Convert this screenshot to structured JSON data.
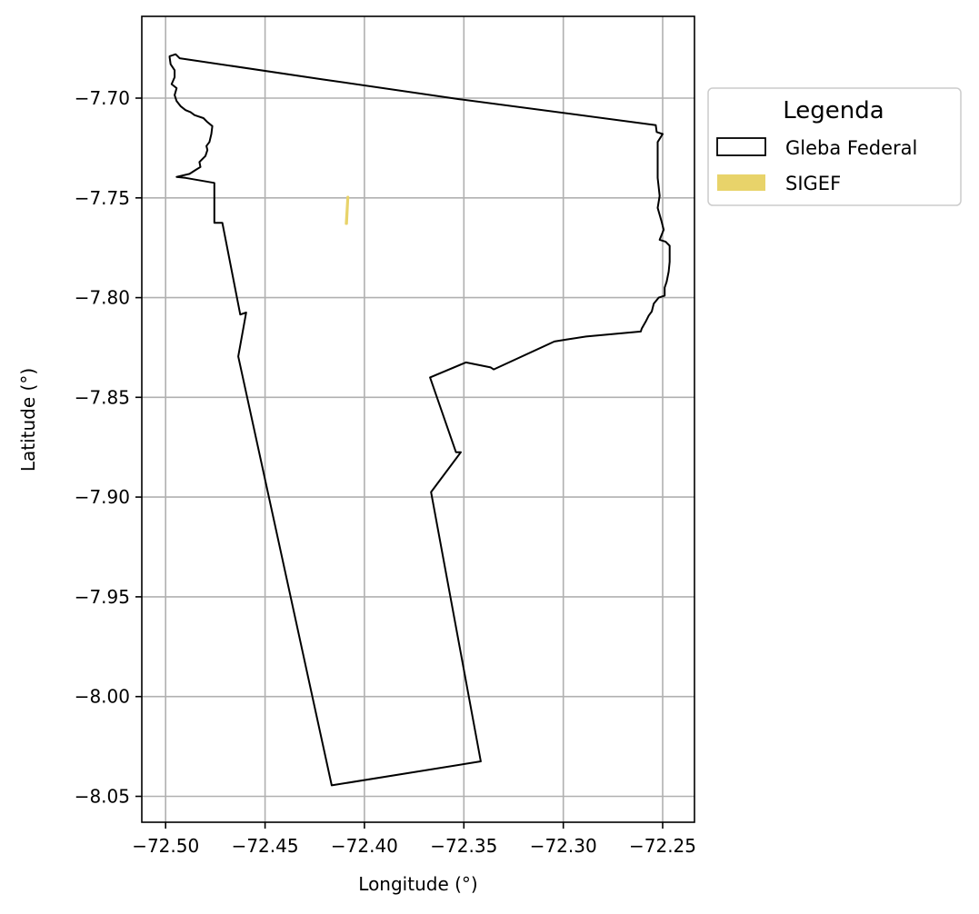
{
  "chart_data": {
    "type": "map",
    "xlabel": "Longitude (°)",
    "ylabel": "Latitude (°)",
    "xlim": [
      -72.512,
      -72.234
    ],
    "ylim": [
      -8.063,
      -7.659
    ],
    "x_ticks": [
      -72.5,
      -72.45,
      -72.4,
      -72.35,
      -72.3,
      -72.25
    ],
    "x_tick_labels": [
      "−72.50",
      "−72.45",
      "−72.40",
      "−72.35",
      "−72.30",
      "−72.25"
    ],
    "y_ticks": [
      -7.7,
      -7.75,
      -7.8,
      -7.85,
      -7.9,
      -7.95,
      -8.0,
      -8.05
    ],
    "y_tick_labels": [
      "−7.70",
      "−7.75",
      "−7.80",
      "−7.85",
      "−7.90",
      "−7.95",
      "−8.00",
      "−8.05"
    ],
    "grid": true,
    "legend": {
      "title": "Legenda",
      "placement": "outside upper right",
      "entries": [
        {
          "label": "Gleba Federal",
          "style": "outline",
          "color": "#000000"
        },
        {
          "label": "SIGEF",
          "style": "filled",
          "color": "#e8d36a"
        }
      ]
    },
    "series": [
      {
        "name": "Gleba Federal",
        "geometry": "polygon",
        "color": "#000000",
        "coordinates": [
          [
            -72.498,
            -7.679
          ],
          [
            -72.495,
            -7.678
          ],
          [
            -72.493,
            -7.68
          ],
          [
            -72.4215,
            -7.6905
          ],
          [
            -72.3525,
            -7.7005
          ],
          [
            -72.2535,
            -7.7135
          ],
          [
            -72.253,
            -7.717
          ],
          [
            -72.25,
            -7.718
          ],
          [
            -72.2525,
            -7.722
          ],
          [
            -72.2525,
            -7.731
          ],
          [
            -72.2525,
            -7.74
          ],
          [
            -72.2515,
            -7.749
          ],
          [
            -72.2525,
            -7.755
          ],
          [
            -72.2505,
            -7.762
          ],
          [
            -72.2495,
            -7.766
          ],
          [
            -72.2515,
            -7.771
          ],
          [
            -72.2485,
            -7.772
          ],
          [
            -72.2465,
            -7.774
          ],
          [
            -72.2465,
            -7.782
          ],
          [
            -72.247,
            -7.787
          ],
          [
            -72.248,
            -7.792
          ],
          [
            -72.249,
            -7.795
          ],
          [
            -72.249,
            -7.799
          ],
          [
            -72.252,
            -7.8
          ],
          [
            -72.2545,
            -7.803
          ],
          [
            -72.2555,
            -7.807
          ],
          [
            -72.257,
            -7.809
          ],
          [
            -72.2585,
            -7.812
          ],
          [
            -72.2605,
            -7.8155
          ],
          [
            -72.261,
            -7.817
          ],
          [
            -72.2885,
            -7.8195
          ],
          [
            -72.2985,
            -7.821
          ],
          [
            -72.3045,
            -7.822
          ],
          [
            -72.335,
            -7.836
          ],
          [
            -72.3365,
            -7.835
          ],
          [
            -72.349,
            -7.8325
          ],
          [
            -72.367,
            -7.84
          ],
          [
            -72.354,
            -7.8775
          ],
          [
            -72.3515,
            -7.8775
          ],
          [
            -72.3665,
            -7.8975
          ],
          [
            -72.3415,
            -8.0325
          ],
          [
            -72.4165,
            -8.0445
          ],
          [
            -72.4635,
            -7.8295
          ],
          [
            -72.4595,
            -7.8075
          ],
          [
            -72.4625,
            -7.8085
          ],
          [
            -72.4715,
            -7.7625
          ],
          [
            -72.4755,
            -7.7625
          ],
          [
            -72.4755,
            -7.7425
          ],
          [
            -72.49,
            -7.74
          ],
          [
            -72.4945,
            -7.7395
          ],
          [
            -72.488,
            -7.738
          ],
          [
            -72.485,
            -7.736
          ],
          [
            -72.4825,
            -7.7345
          ],
          [
            -72.483,
            -7.732
          ],
          [
            -72.48,
            -7.729
          ],
          [
            -72.479,
            -7.726
          ],
          [
            -72.4795,
            -7.724
          ],
          [
            -72.478,
            -7.722
          ],
          [
            -72.477,
            -7.718
          ],
          [
            -72.4765,
            -7.714
          ],
          [
            -72.479,
            -7.712
          ],
          [
            -72.481,
            -7.71
          ],
          [
            -72.4855,
            -7.7085
          ],
          [
            -72.4875,
            -7.707
          ],
          [
            -72.49,
            -7.706
          ],
          [
            -72.4925,
            -7.704
          ],
          [
            -72.4945,
            -7.7015
          ],
          [
            -72.4955,
            -7.6985
          ],
          [
            -72.4945,
            -7.695
          ],
          [
            -72.497,
            -7.693
          ],
          [
            -72.4955,
            -7.6895
          ],
          [
            -72.4955,
            -7.686
          ],
          [
            -72.4975,
            -7.683
          ],
          [
            -72.498,
            -7.6795
          ]
        ]
      },
      {
        "name": "SIGEF",
        "geometry": "polygon",
        "color": "#e8d36a",
        "coordinates": [
          [
            -72.4085,
            -7.7495
          ],
          [
            -72.4082,
            -7.7495
          ],
          [
            -72.4089,
            -7.763
          ],
          [
            -72.4093,
            -7.763
          ]
        ]
      }
    ]
  }
}
